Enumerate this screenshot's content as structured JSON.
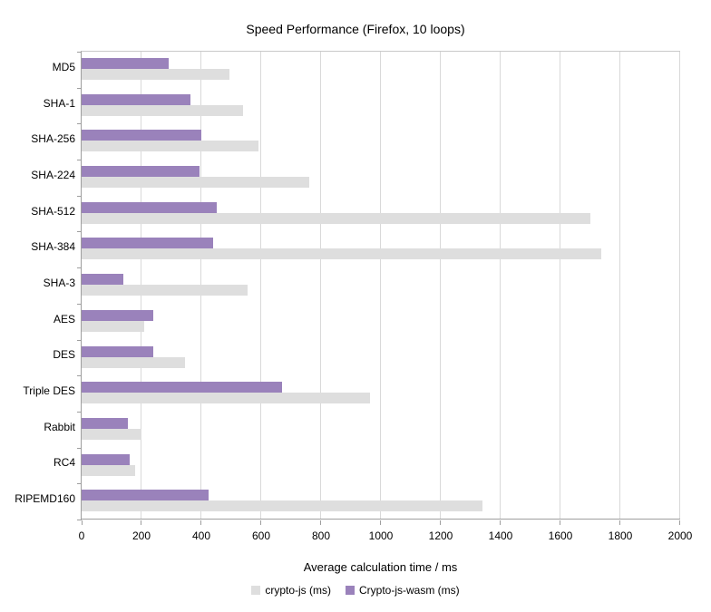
{
  "title": "Speed Performance (Firefox, 10 loops)",
  "chart_data": {
    "type": "bar",
    "orientation": "horizontal",
    "title": "Speed Performance (Firefox, 10 loops)",
    "xlabel": "Average calculation time / ms",
    "ylabel": "",
    "xlim": [
      0,
      2000
    ],
    "xtick_step": 200,
    "grid": true,
    "legend_position": "bottom",
    "categories": [
      "MD5",
      "SHA-1",
      "SHA-256",
      "SHA-224",
      "SHA-512",
      "SHA-384",
      "SHA-3",
      "AES",
      "DES",
      "Triple DES",
      "Rabbit",
      "RC4",
      "RIPEMD160"
    ],
    "series": [
      {
        "name": "crypto-js (ms)",
        "color": "#dedede",
        "values": [
          495,
          540,
          590,
          760,
          1700,
          1735,
          555,
          210,
          345,
          965,
          200,
          180,
          1340
        ]
      },
      {
        "name": "Crypto-js-wasm (ms)",
        "color": "#9a82bb",
        "values": [
          290,
          365,
          400,
          395,
          450,
          440,
          140,
          240,
          240,
          670,
          155,
          160,
          425
        ]
      }
    ]
  },
  "colors": {
    "gridline": "#d9d9d9",
    "axis": "#9e9e9e",
    "text": "#000000"
  }
}
